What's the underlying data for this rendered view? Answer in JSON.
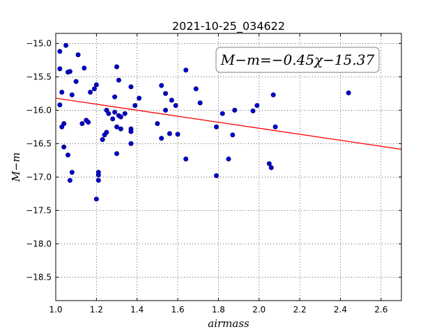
{
  "chart_data": {
    "type": "scatter",
    "title": "2021-10-25_034622",
    "xlabel": "airmass",
    "ylabel": "M−m",
    "xlim": [
      1.0,
      2.7
    ],
    "ylim": [
      -18.85,
      -14.85
    ],
    "y_inverted": true,
    "grid": true,
    "x_ticks": [
      1.0,
      1.2,
      1.4,
      1.6,
      1.8,
      2.0,
      2.2,
      2.4,
      2.6
    ],
    "x_tick_labels": [
      "1.0",
      "1.2",
      "1.4",
      "1.6",
      "1.8",
      "2.0",
      "2.2",
      "2.4",
      "2.6"
    ],
    "y_ticks": [
      -15.0,
      -15.5,
      -16.0,
      -16.5,
      -17.0,
      -17.5,
      -18.0,
      -18.5
    ],
    "y_tick_labels": [
      "−15.0",
      "−15.5",
      "−16.0",
      "−16.5",
      "−17.0",
      "−17.5",
      "−18.0",
      "−18.5"
    ],
    "fit": {
      "slope": -0.45,
      "intercept": -15.37,
      "color": "#ff0000"
    },
    "annotation": "M−m=−0.45χ−15.37",
    "marker_color": "#0000cc",
    "points": [
      [
        1.02,
        -15.12
      ],
      [
        1.02,
        -15.38
      ],
      [
        1.02,
        -15.92
      ],
      [
        1.03,
        -15.73
      ],
      [
        1.03,
        -16.25
      ],
      [
        1.04,
        -16.55
      ],
      [
        1.04,
        -16.2
      ],
      [
        1.05,
        -15.03
      ],
      [
        1.06,
        -15.43
      ],
      [
        1.06,
        -16.67
      ],
      [
        1.07,
        -15.42
      ],
      [
        1.07,
        -17.05
      ],
      [
        1.08,
        -15.77
      ],
      [
        1.08,
        -16.93
      ],
      [
        1.1,
        -15.57
      ],
      [
        1.11,
        -15.17
      ],
      [
        1.13,
        -16.2
      ],
      [
        1.14,
        -15.37
      ],
      [
        1.15,
        -16.15
      ],
      [
        1.16,
        -16.18
      ],
      [
        1.17,
        -15.73
      ],
      [
        1.19,
        -15.68
      ],
      [
        1.2,
        -15.62
      ],
      [
        1.2,
        -17.33
      ],
      [
        1.21,
        -16.97
      ],
      [
        1.21,
        -17.05
      ],
      [
        1.21,
        -16.93
      ],
      [
        1.23,
        -16.44
      ],
      [
        1.24,
        -16.37
      ],
      [
        1.25,
        -16.0
      ],
      [
        1.25,
        -16.33
      ],
      [
        1.26,
        -16.05
      ],
      [
        1.28,
        -16.13
      ],
      [
        1.29,
        -16.03
      ],
      [
        1.29,
        -15.8
      ],
      [
        1.3,
        -16.25
      ],
      [
        1.3,
        -16.65
      ],
      [
        1.3,
        -15.35
      ],
      [
        1.31,
        -16.08
      ],
      [
        1.31,
        -15.55
      ],
      [
        1.32,
        -16.28
      ],
      [
        1.32,
        -16.1
      ],
      [
        1.34,
        -16.05
      ],
      [
        1.37,
        -15.65
      ],
      [
        1.37,
        -16.28
      ],
      [
        1.37,
        -16.32
      ],
      [
        1.37,
        -16.5
      ],
      [
        1.39,
        -15.93
      ],
      [
        1.41,
        -15.82
      ],
      [
        1.5,
        -16.2
      ],
      [
        1.52,
        -15.63
      ],
      [
        1.52,
        -16.42
      ],
      [
        1.54,
        -15.75
      ],
      [
        1.54,
        -16.0
      ],
      [
        1.56,
        -16.35
      ],
      [
        1.57,
        -15.85
      ],
      [
        1.59,
        -15.93
      ],
      [
        1.6,
        -16.36
      ],
      [
        1.64,
        -15.4
      ],
      [
        1.64,
        -16.73
      ],
      [
        1.69,
        -15.68
      ],
      [
        1.71,
        -15.89
      ],
      [
        1.79,
        -16.98
      ],
      [
        1.79,
        -16.25
      ],
      [
        1.82,
        -16.05
      ],
      [
        1.85,
        -16.73
      ],
      [
        1.87,
        -16.37
      ],
      [
        1.88,
        -16.0
      ],
      [
        1.97,
        -16.01
      ],
      [
        1.99,
        -15.93
      ],
      [
        2.05,
        -16.8
      ],
      [
        2.06,
        -16.86
      ],
      [
        2.07,
        -15.77
      ],
      [
        2.08,
        -16.25
      ],
      [
        2.44,
        -15.74
      ]
    ]
  }
}
